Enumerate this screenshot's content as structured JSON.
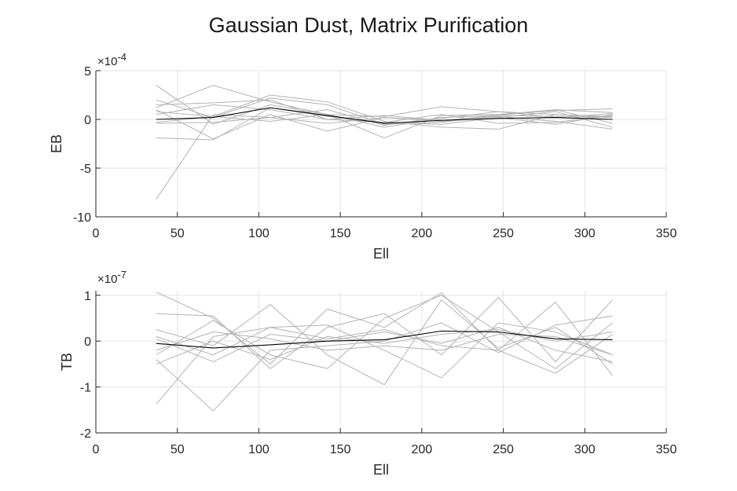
{
  "chart_data": [
    {
      "type": "line",
      "title": "Gaussian Dust, Matrix Purification",
      "xlabel": "Ell",
      "ylabel": "EB",
      "exponent_label": "×10",
      "exponent_power": "-4",
      "scale": 0.0001,
      "xlim": [
        0,
        350
      ],
      "ylim": [
        -10,
        5
      ],
      "xticks": [
        "0",
        "50",
        "100",
        "150",
        "200",
        "250",
        "300",
        "350"
      ],
      "yticks": [
        "5",
        "0",
        "-5",
        "-10"
      ],
      "xtick_values": [
        0,
        50,
        100,
        150,
        200,
        250,
        300,
        350
      ],
      "ytick_values": [
        5,
        0,
        -5,
        -10
      ],
      "grid": true,
      "x": [
        37,
        72,
        107,
        142,
        177,
        212,
        247,
        282,
        317
      ],
      "series": [
        {
          "color": "#b3b3b3",
          "values": [
            3.5,
            -0.5,
            1.5,
            0.5,
            -0.8,
            0.1,
            0.8,
            0.2,
            0.6
          ]
        },
        {
          "color": "#b3b3b3",
          "values": [
            2.0,
            0.2,
            2.2,
            1.5,
            -0.5,
            -0.3,
            0.5,
            1.0,
            -0.4
          ]
        },
        {
          "color": "#b3b3b3",
          "values": [
            1.2,
            3.5,
            1.8,
            0.5,
            0.3,
            1.3,
            0.8,
            0.5,
            0.2
          ]
        },
        {
          "color": "#b3b3b3",
          "values": [
            0.5,
            1.5,
            1.0,
            0.0,
            -0.3,
            -0.5,
            0.2,
            0.8,
            -0.8
          ]
        },
        {
          "color": "#b3b3b3",
          "values": [
            -0.3,
            0.3,
            2.5,
            1.8,
            -0.2,
            -0.8,
            -1.0,
            0.5,
            0.3
          ]
        },
        {
          "color": "#b3b3b3",
          "values": [
            1.0,
            -2.0,
            0.5,
            -1.2,
            0.2,
            -0.2,
            0.2,
            -0.5,
            0.5
          ]
        },
        {
          "color": "#b3b3b3",
          "values": [
            0.8,
            0.3,
            -0.2,
            0.5,
            -1.9,
            0.4,
            0.5,
            0.9,
            1.1
          ]
        },
        {
          "color": "#b3b3b3",
          "values": [
            -1.9,
            -2.1,
            1.2,
            0.3,
            -0.3,
            0.5,
            -0.4,
            -0.3,
            0.4
          ]
        },
        {
          "color": "#b3b3b3",
          "values": [
            -8.2,
            0.5,
            0.2,
            1.0,
            -0.6,
            0.2,
            0.4,
            0.3,
            0.2
          ]
        },
        {
          "color": "#b3b3b3",
          "values": [
            1.5,
            1.7,
            2.0,
            0.0,
            0.4,
            -0.1,
            0.4,
            1.0,
            0.7
          ]
        },
        {
          "color": "#b3b3b3",
          "values": [
            -0.4,
            -0.3,
            0.2,
            -0.4,
            0.2,
            -0.1,
            0.3,
            -0.2,
            -1.0
          ]
        },
        {
          "color": "#000000",
          "values": [
            0.0,
            0.2,
            1.2,
            0.4,
            -0.4,
            -0.1,
            0.1,
            0.2,
            0.0
          ]
        }
      ]
    },
    {
      "type": "line",
      "xlabel": "Ell",
      "ylabel": "TB",
      "exponent_label": "×10",
      "exponent_power": "-7",
      "scale": 1e-07,
      "xlim": [
        0,
        350
      ],
      "ylim": [
        -2,
        1.1
      ],
      "xticks": [
        "0",
        "50",
        "100",
        "150",
        "200",
        "250",
        "300",
        "350"
      ],
      "yticks": [
        "1",
        "0",
        "-1",
        "-2"
      ],
      "xtick_values": [
        0,
        50,
        100,
        150,
        200,
        250,
        300,
        350
      ],
      "ytick_values": [
        1,
        0,
        -1,
        -2
      ],
      "grid": true,
      "x": [
        37,
        72,
        107,
        142,
        177,
        212,
        247,
        282,
        317
      ],
      "series": [
        {
          "color": "#b3b3b3",
          "values": [
            1.07,
            0.5,
            -0.5,
            0.7,
            0.3,
            1.05,
            -0.2,
            0.85,
            -0.75
          ]
        },
        {
          "color": "#b3b3b3",
          "values": [
            0.6,
            0.55,
            -0.6,
            0.3,
            0.6,
            -0.3,
            0.95,
            -0.45,
            0.9
          ]
        },
        {
          "color": "#b3b3b3",
          "values": [
            0.25,
            -0.1,
            0.8,
            -0.3,
            -0.95,
            0.9,
            -0.15,
            0.3,
            -0.5
          ]
        },
        {
          "color": "#b3b3b3",
          "values": [
            -0.3,
            0.45,
            -0.3,
            -0.6,
            0.5,
            1.0,
            0.2,
            -0.6,
            0.4
          ]
        },
        {
          "color": "#b3b3b3",
          "values": [
            -1.38,
            0.1,
            0.3,
            0.35,
            -0.2,
            -0.8,
            0.4,
            0.2,
            -0.3
          ]
        },
        {
          "color": "#b3b3b3",
          "values": [
            -0.4,
            -1.52,
            -0.2,
            -0.1,
            0.0,
            0.4,
            -0.25,
            0.35,
            0.55
          ]
        },
        {
          "color": "#b3b3b3",
          "values": [
            0.1,
            -0.3,
            0.3,
            0.05,
            0.25,
            -0.1,
            -0.2,
            -0.7,
            0.15
          ]
        },
        {
          "color": "#b3b3b3",
          "values": [
            -0.2,
            0.2,
            0.05,
            -0.2,
            -0.1,
            -0.2,
            0.15,
            0.1,
            -0.3
          ]
        },
        {
          "color": "#b3b3b3",
          "values": [
            0.05,
            -0.45,
            0.15,
            0.0,
            0.2,
            -0.05,
            0.3,
            -0.2,
            -0.45
          ]
        },
        {
          "color": "#b3b3b3",
          "values": [
            -0.5,
            0.0,
            -0.4,
            0.1,
            -0.05,
            0.15,
            0.25,
            0.0,
            0.2
          ]
        },
        {
          "color": "#000000",
          "values": [
            -0.05,
            -0.15,
            -0.08,
            0.0,
            0.03,
            0.22,
            0.2,
            0.05,
            0.03
          ]
        }
      ]
    }
  ]
}
